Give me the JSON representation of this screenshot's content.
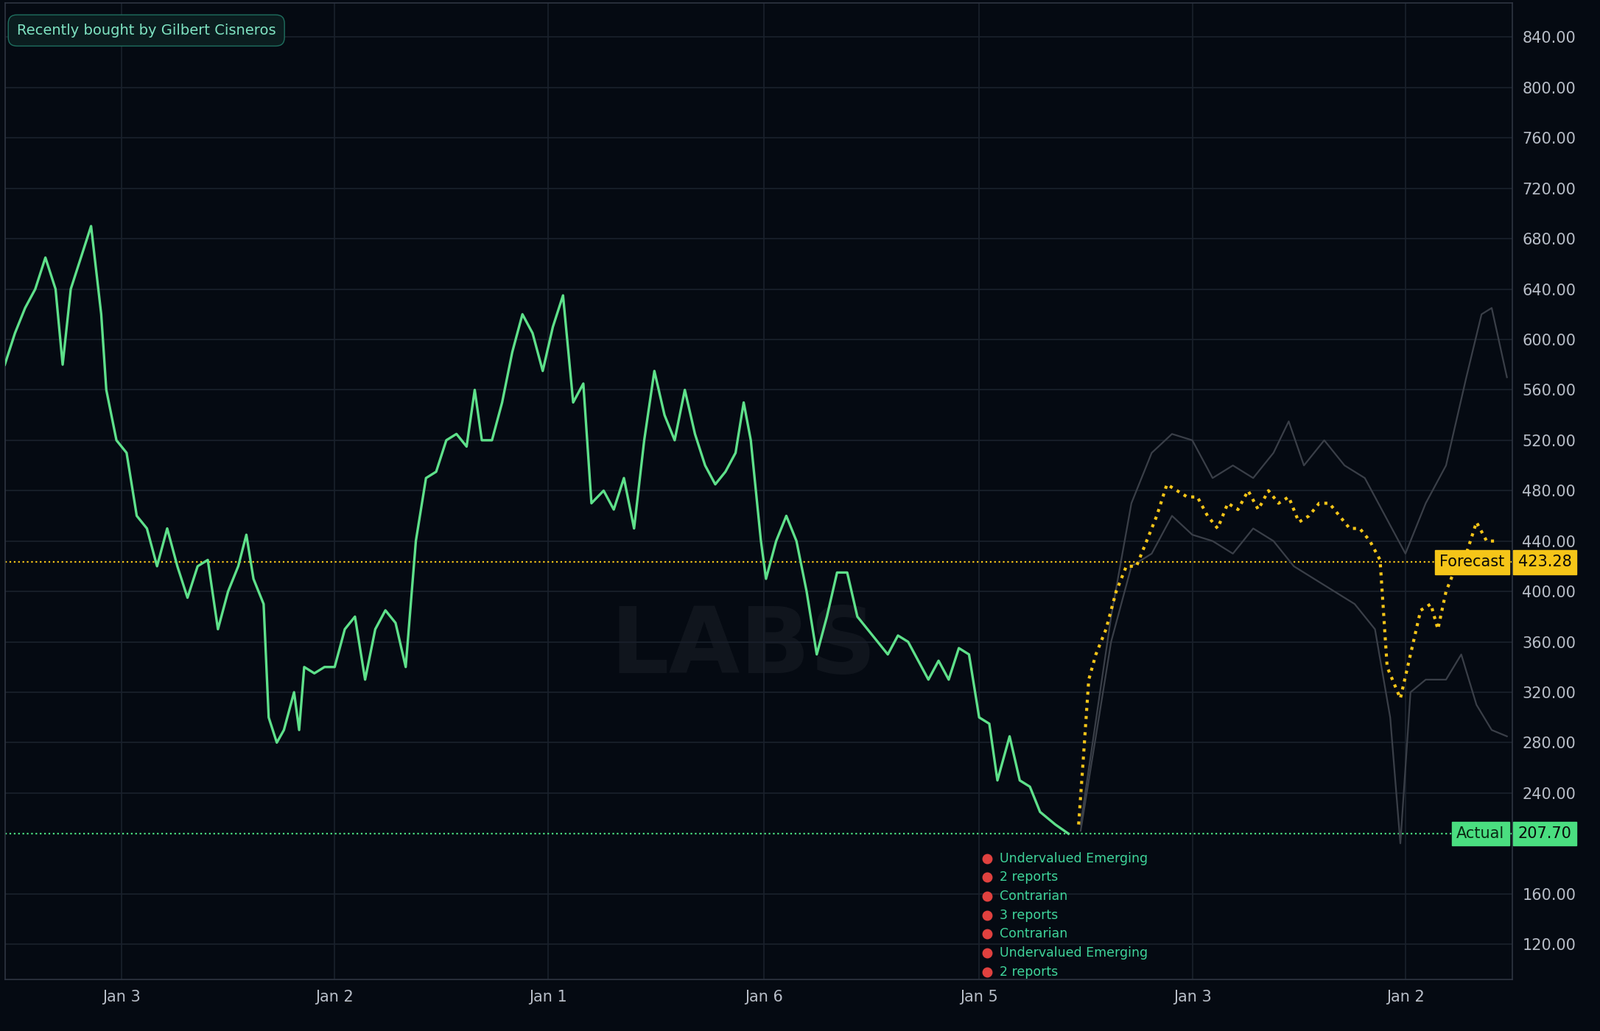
{
  "chart_data": {
    "type": "line",
    "badge": "Recently bought by Gilbert Cisneros",
    "watermark": "LABS",
    "xlim": [
      0,
      1485
    ],
    "xticks": [
      {
        "value": 115,
        "label": "Jan 3"
      },
      {
        "value": 325,
        "label": "Jan 2"
      },
      {
        "value": 535,
        "label": "Jan 1"
      },
      {
        "value": 748,
        "label": "Jan 6"
      },
      {
        "value": 960,
        "label": "Jan 5"
      },
      {
        "value": 1170,
        "label": "Jan 3"
      },
      {
        "value": 1380,
        "label": "Jan 2"
      }
    ],
    "ylim": [
      92,
      867
    ],
    "yticks": [
      {
        "value": 120,
        "label": "120.00"
      },
      {
        "value": 160,
        "label": "160.00"
      },
      {
        "value": 240,
        "label": "240.00"
      },
      {
        "value": 280,
        "label": "280.00"
      },
      {
        "value": 320,
        "label": "320.00"
      },
      {
        "value": 360,
        "label": "360.00"
      },
      {
        "value": 400,
        "label": "400.00"
      },
      {
        "value": 440,
        "label": "440.00"
      },
      {
        "value": 480,
        "label": "480.00"
      },
      {
        "value": 520,
        "label": "520.00"
      },
      {
        "value": 560,
        "label": "560.00"
      },
      {
        "value": 600,
        "label": "600.00"
      },
      {
        "value": 640,
        "label": "640.00"
      },
      {
        "value": 680,
        "label": "680.00"
      },
      {
        "value": 720,
        "label": "720.00"
      },
      {
        "value": 760,
        "label": "760.00"
      },
      {
        "value": 800,
        "label": "800.00"
      },
      {
        "value": 840,
        "label": "840.00"
      }
    ],
    "grid": true,
    "series": [
      {
        "color": "#3a3f48",
        "line_style": "solid",
        "x": [
          1060,
          1090,
          1110,
          1130,
          1150,
          1170,
          1190,
          1210,
          1230,
          1250,
          1265,
          1280,
          1300,
          1320,
          1340,
          1360,
          1380,
          1400,
          1420,
          1440,
          1455,
          1465,
          1480
        ],
        "values": [
          215,
          380,
          470,
          510,
          525,
          520,
          490,
          500,
          490,
          510,
          535,
          500,
          520,
          500,
          490,
          460,
          430,
          470,
          500,
          570,
          620,
          625,
          570
        ]
      },
      {
        "color": "#3a3f48",
        "line_style": "solid",
        "x": [
          1060,
          1090,
          1110,
          1130,
          1150,
          1170,
          1190,
          1210,
          1230,
          1250,
          1270,
          1290,
          1310,
          1330,
          1350,
          1365,
          1375,
          1385,
          1400,
          1420,
          1435,
          1450,
          1465,
          1480
        ],
        "values": [
          210,
          360,
          420,
          430,
          460,
          445,
          440,
          430,
          450,
          440,
          420,
          410,
          400,
          390,
          370,
          300,
          200,
          320,
          330,
          330,
          350,
          310,
          290,
          285
        ]
      },
      {
        "color": "#5ee08a",
        "line_style": "solid",
        "x": [
          0,
          10,
          20,
          30,
          40,
          50,
          57,
          65,
          75,
          85,
          95,
          100,
          110,
          120,
          130,
          140,
          150,
          160,
          170,
          180,
          190,
          200,
          210,
          220,
          230,
          238,
          245,
          255,
          260,
          268,
          275,
          285,
          290,
          295,
          305,
          315,
          325,
          335,
          345,
          355,
          365,
          375,
          385,
          395,
          405,
          415,
          425,
          435,
          445,
          455,
          463,
          470,
          480,
          490,
          500,
          510,
          520,
          530,
          540,
          550,
          560,
          570,
          578,
          590,
          600,
          610,
          620,
          630,
          640,
          650,
          660,
          670,
          680,
          690,
          700,
          710,
          720,
          728,
          735,
          745,
          750,
          760,
          770,
          780,
          790,
          800,
          810,
          820,
          830,
          840,
          850,
          860,
          870,
          880,
          890,
          900,
          910,
          920,
          930,
          940,
          950,
          960,
          970,
          978,
          990,
          1000,
          1010,
          1020,
          1035,
          1048
        ],
        "values": [
          580,
          605,
          625,
          640,
          665,
          640,
          580,
          640,
          665,
          690,
          620,
          560,
          520,
          510,
          460,
          450,
          420,
          450,
          420,
          395,
          420,
          425,
          370,
          400,
          420,
          445,
          410,
          390,
          300,
          280,
          290,
          320,
          290,
          340,
          335,
          340,
          340,
          370,
          380,
          330,
          370,
          385,
          375,
          340,
          440,
          490,
          495,
          520,
          525,
          515,
          560,
          520,
          520,
          550,
          590,
          620,
          605,
          575,
          610,
          635,
          550,
          565,
          470,
          480,
          465,
          490,
          450,
          520,
          575,
          540,
          520,
          560,
          525,
          500,
          485,
          495,
          510,
          550,
          520,
          440,
          410,
          440,
          460,
          440,
          400,
          350,
          380,
          415,
          415,
          380,
          370,
          360,
          350,
          365,
          360,
          345,
          330,
          345,
          330,
          355,
          350,
          300,
          295,
          250,
          285,
          250,
          245,
          225,
          215,
          207.7
        ]
      },
      {
        "color": "#f5c518",
        "line_style": "dotted",
        "x": [
          1058,
          1062,
          1068,
          1075,
          1085,
          1095,
          1105,
          1115,
          1125,
          1135,
          1145,
          1155,
          1165,
          1175,
          1185,
          1195,
          1205,
          1215,
          1225,
          1235,
          1245,
          1255,
          1265,
          1275,
          1285,
          1295,
          1305,
          1315,
          1325,
          1335,
          1345,
          1355,
          1362,
          1375,
          1385,
          1395,
          1405,
          1412,
          1420,
          1430,
          1440,
          1450,
          1460,
          1470
        ],
        "values": [
          215,
          260,
          330,
          350,
          370,
          400,
          420,
          420,
          440,
          460,
          485,
          480,
          475,
          475,
          460,
          450,
          470,
          465,
          480,
          465,
          480,
          470,
          475,
          455,
          460,
          470,
          470,
          460,
          450,
          450,
          440,
          425,
          340,
          315,
          350,
          385,
          390,
          370,
          400,
          420,
          430,
          455,
          440,
          440
        ]
      }
    ],
    "reference_lines": [
      {
        "name": "Forecast",
        "value": 423.28,
        "color": "#f5c518"
      },
      {
        "name": "Actual",
        "value": 207.7,
        "color": "#4ade80"
      }
    ],
    "annotations": [
      "Undervalued Emerging",
      "2 reports",
      "Contrarian",
      "3 reports",
      "Contrarian",
      "Undervalued Emerging",
      "2 reports"
    ]
  }
}
